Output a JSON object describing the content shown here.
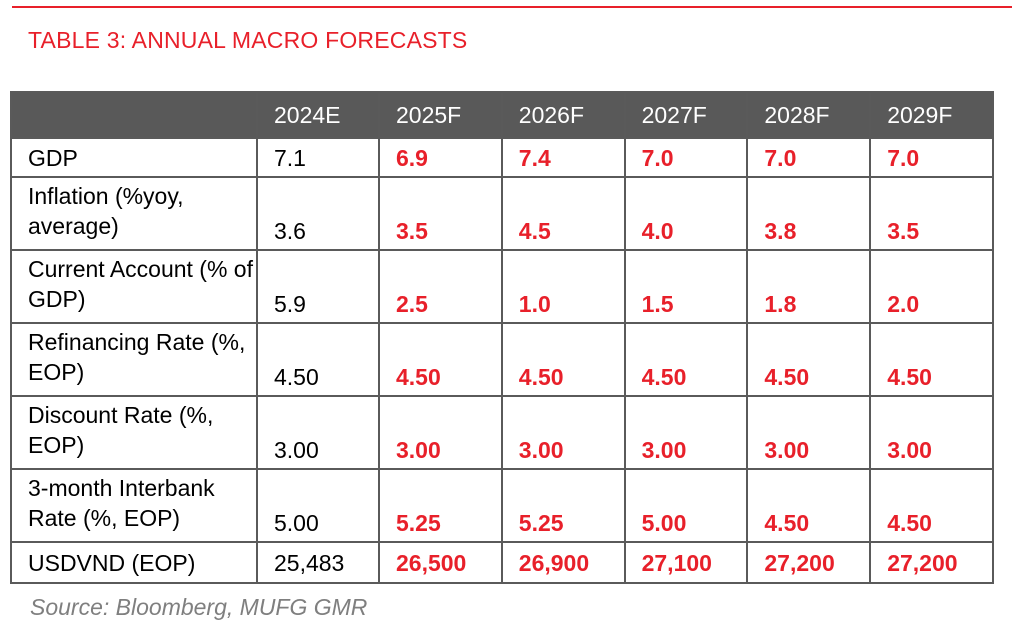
{
  "title": "TABLE 3: ANNUAL MACRO FORECASTS",
  "columns": [
    "",
    "2024E",
    "2025F",
    "2026F",
    "2027F",
    "2028F",
    "2029F"
  ],
  "rows": [
    {
      "label": "GDP",
      "values": [
        "7.1",
        "6.9",
        "7.4",
        "7.0",
        "7.0",
        "7.0"
      ]
    },
    {
      "label": "Inflation (%yoy, average)",
      "values": [
        "3.6",
        "3.5",
        "4.5",
        "4.0",
        "3.8",
        "3.5"
      ]
    },
    {
      "label": "Current Account (% of GDP)",
      "values": [
        "5.9",
        "2.5",
        "1.0",
        "1.5",
        "1.8",
        "2.0"
      ]
    },
    {
      "label": "Refinancing Rate (%, EOP)",
      "values": [
        "4.50",
        "4.50",
        "4.50",
        "4.50",
        "4.50",
        "4.50"
      ]
    },
    {
      "label": "Discount Rate (%, EOP)",
      "values": [
        "3.00",
        "3.00",
        "3.00",
        "3.00",
        "3.00",
        "3.00"
      ]
    },
    {
      "label": "3-month Interbank Rate (%, EOP)",
      "values": [
        "5.00",
        "5.25",
        "5.25",
        "5.00",
        "4.50",
        "4.50"
      ]
    },
    {
      "label": "USDVND (EOP)",
      "values": [
        "25,483",
        "26,500",
        "26,900",
        "27,100",
        "27,200",
        "27,200"
      ]
    }
  ],
  "source": "Source: Bloomberg, MUFG GMR",
  "colors": {
    "accent": "#e8202a",
    "header_bg": "#595959",
    "source_text": "#7f7f7f"
  }
}
